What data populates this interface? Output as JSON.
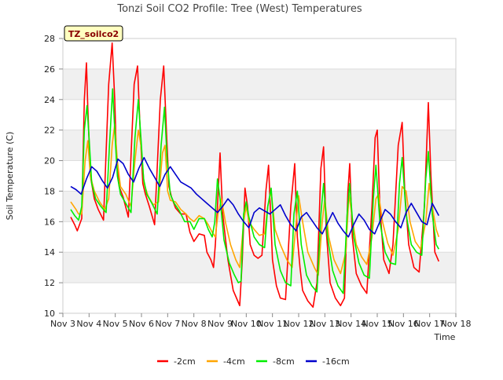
{
  "chart_data": {
    "type": "line",
    "title": "Tonzi Soil CO2 Profile: Tree (West) Temperatures",
    "xlabel": "Time",
    "ylabel": "Soil Temperature (C)",
    "badge": "TZ_soilco2",
    "xlim": [
      3,
      18
    ],
    "ylim": [
      10,
      28
    ],
    "x_ticks": [
      3,
      4,
      5,
      6,
      7,
      8,
      9,
      10,
      11,
      12,
      13,
      14,
      15,
      16,
      17,
      18
    ],
    "x_tick_labels": [
      "Nov 3",
      "Nov 4",
      "Nov 5",
      "Nov 6",
      "Nov 7",
      "Nov 8",
      "Nov 9",
      "Nov 10",
      "Nov 11",
      "Nov 12",
      "Nov 13",
      "Nov 14",
      "Nov 15",
      "Nov 16",
      "Nov 17",
      "Nov 18"
    ],
    "y_ticks": [
      10,
      12,
      14,
      16,
      18,
      20,
      22,
      24,
      26,
      28
    ],
    "grid": true,
    "legend_position": "bottom",
    "series": [
      {
        "name": "-2cm",
        "color": "#ff0000",
        "x": [
          3.3,
          3.45,
          3.55,
          3.72,
          3.82,
          3.9,
          3.95,
          4.05,
          4.2,
          4.35,
          4.55,
          4.75,
          4.88,
          4.98,
          5.05,
          5.15,
          5.3,
          5.5,
          5.72,
          5.85,
          5.95,
          6.05,
          6.15,
          6.3,
          6.5,
          6.72,
          6.85,
          6.95,
          7.05,
          7.15,
          7.3,
          7.5,
          7.7,
          7.85,
          8.0,
          8.2,
          8.4,
          8.5,
          8.65,
          8.75,
          8.82,
          8.9,
          9.0,
          9.1,
          9.3,
          9.5,
          9.65,
          9.75,
          9.85,
          9.95,
          10.05,
          10.15,
          10.3,
          10.45,
          10.6,
          10.75,
          10.85,
          11.0,
          11.15,
          11.3,
          11.5,
          11.7,
          11.85,
          11.95,
          12.05,
          12.15,
          12.35,
          12.55,
          12.7,
          12.85,
          12.95,
          13.05,
          13.2,
          13.4,
          13.6,
          13.75,
          13.88,
          13.95,
          14.05,
          14.2,
          14.4,
          14.6,
          14.8,
          14.92,
          15.0,
          15.1,
          15.25,
          15.45,
          15.6,
          15.8,
          15.95,
          16.05,
          16.2,
          16.4,
          16.6,
          16.8,
          16.95,
          17.05,
          17.2,
          17.35
        ],
        "y": [
          16.3,
          15.8,
          15.4,
          16.2,
          24,
          26.4,
          23.5,
          19,
          17.5,
          16.8,
          16.1,
          25,
          27.7,
          24,
          20,
          18.3,
          17.6,
          16.3,
          25,
          26.2,
          22,
          18.5,
          17.8,
          17,
          15.8,
          24,
          26.2,
          22,
          18.3,
          17.6,
          16.9,
          16.5,
          16.5,
          15.3,
          14.7,
          15.2,
          15.1,
          14,
          13.5,
          13,
          14.5,
          17,
          20.5,
          16.5,
          13.5,
          11.5,
          10.9,
          10.5,
          13.5,
          18.2,
          17,
          14.5,
          13.8,
          13.6,
          13.8,
          18,
          19.7,
          13.5,
          11.8,
          11,
          10.9,
          17,
          19.8,
          15,
          13,
          11.5,
          10.8,
          10.4,
          12,
          19.5,
          20.9,
          15.5,
          12,
          11,
          10.5,
          11,
          18,
          19.8,
          15,
          12.6,
          11.8,
          11.3,
          17,
          21.5,
          22,
          17,
          13.5,
          12.6,
          14.5,
          21,
          22.5,
          18,
          14.5,
          13,
          12.7,
          17,
          23.8,
          19,
          14,
          13.4
        ]
      },
      {
        "name": "-4cm",
        "color": "#ffa500",
        "x": [
          3.3,
          3.5,
          3.6,
          3.72,
          3.85,
          3.95,
          4.05,
          4.2,
          4.4,
          4.6,
          4.75,
          4.88,
          4.98,
          5.08,
          5.2,
          5.4,
          5.6,
          5.75,
          5.88,
          5.98,
          6.1,
          6.25,
          6.45,
          6.65,
          6.8,
          6.9,
          7.0,
          7.1,
          7.3,
          7.5,
          7.7,
          7.85,
          8.0,
          8.2,
          8.4,
          8.55,
          8.7,
          8.82,
          8.92,
          9.05,
          9.2,
          9.4,
          9.6,
          9.75,
          9.9,
          10.0,
          10.1,
          10.3,
          10.5,
          10.7,
          10.82,
          10.95,
          11.1,
          11.3,
          11.55,
          11.75,
          11.88,
          12.0,
          12.15,
          12.35,
          12.6,
          12.75,
          12.9,
          13.0,
          13.15,
          13.35,
          13.6,
          13.8,
          13.92,
          14.05,
          14.2,
          14.4,
          14.6,
          14.8,
          14.95,
          15.05,
          15.2,
          15.4,
          15.6,
          15.8,
          15.95,
          16.1,
          16.25,
          16.45,
          16.65,
          16.85,
          16.98,
          17.1,
          17.25,
          17.35
        ],
        "y": [
          17.3,
          16.8,
          16.5,
          16.5,
          20,
          21.3,
          19,
          18,
          17.3,
          16.8,
          17.5,
          21,
          22.4,
          20,
          18.3,
          17.8,
          17,
          20,
          22,
          21,
          18.5,
          17.7,
          17.1,
          17.3,
          20.5,
          21,
          18,
          17.4,
          17.3,
          16.8,
          16.5,
          16.2,
          16,
          16.4,
          16.2,
          15.8,
          15.3,
          15,
          16.5,
          17.5,
          16,
          14.5,
          13.5,
          13,
          16,
          17,
          16,
          15.5,
          15.1,
          15.2,
          17,
          18,
          15.5,
          14.5,
          13.5,
          13,
          15.5,
          17.7,
          16,
          14,
          13,
          12.5,
          16,
          17.5,
          15,
          13.5,
          12.6,
          14,
          17.8,
          16.2,
          14.5,
          13.7,
          13.2,
          15,
          17.5,
          17.8,
          16,
          14.6,
          13.8,
          15.5,
          18.3,
          18,
          16,
          14.7,
          14.2,
          16,
          18.5,
          17,
          15.5,
          15
        ]
      },
      {
        "name": "-8cm",
        "color": "#00ee00",
        "x": [
          3.3,
          3.45,
          3.6,
          3.72,
          3.82,
          3.92,
          4.0,
          4.1,
          4.25,
          4.45,
          4.65,
          4.78,
          4.9,
          4.98,
          5.08,
          5.2,
          5.4,
          5.6,
          5.75,
          5.88,
          5.98,
          6.08,
          6.2,
          6.4,
          6.6,
          6.75,
          6.88,
          6.98,
          7.1,
          7.25,
          7.45,
          7.65,
          7.85,
          8.0,
          8.2,
          8.4,
          8.55,
          8.7,
          8.8,
          8.9,
          9.0,
          9.15,
          9.35,
          9.55,
          9.7,
          9.8,
          9.9,
          10.0,
          10.1,
          10.3,
          10.5,
          10.7,
          10.82,
          10.95,
          11.1,
          11.3,
          11.5,
          11.7,
          11.82,
          11.95,
          12.1,
          12.3,
          12.5,
          12.7,
          12.85,
          12.95,
          13.1,
          13.3,
          13.5,
          13.7,
          13.85,
          13.95,
          14.1,
          14.3,
          14.5,
          14.7,
          14.85,
          14.95,
          15.1,
          15.3,
          15.5,
          15.7,
          15.85,
          15.95,
          16.1,
          16.3,
          16.5,
          16.7,
          16.85,
          16.95,
          17.1,
          17.25,
          17.35
        ],
        "y": [
          16.8,
          16.4,
          16.1,
          17,
          22,
          23.6,
          21.5,
          18.5,
          17.5,
          17,
          16.6,
          21,
          24.7,
          22,
          19,
          17.8,
          17.2,
          16.6,
          21.5,
          24,
          21.5,
          18.8,
          17.8,
          17.2,
          16.5,
          21,
          23.5,
          20,
          17.8,
          17.2,
          16.7,
          16,
          16,
          15.5,
          16.2,
          16.2,
          15.5,
          15,
          16,
          18.8,
          17.5,
          14.8,
          13.3,
          12.5,
          12,
          12.1,
          16.5,
          17.3,
          16.3,
          15,
          14.5,
          14.3,
          17,
          18.2,
          14.5,
          12.8,
          12,
          11.8,
          16.5,
          18,
          14.5,
          12.5,
          11.8,
          11.4,
          16.5,
          18.5,
          15,
          12.8,
          11.8,
          11.3,
          16.5,
          18.5,
          15,
          13.3,
          12.5,
          12.3,
          17.5,
          19.7,
          16,
          14,
          13.3,
          13.2,
          18.5,
          20.2,
          16.5,
          14.5,
          14,
          13.8,
          18.8,
          20.6,
          16.5,
          14.5,
          14.2
        ]
      },
      {
        "name": "-16cm",
        "color": "#0000cc",
        "x": [
          3.3,
          3.5,
          3.7,
          3.9,
          4.1,
          4.3,
          4.5,
          4.7,
          4.9,
          5.1,
          5.3,
          5.5,
          5.7,
          5.9,
          6.1,
          6.3,
          6.5,
          6.7,
          6.9,
          7.1,
          7.3,
          7.5,
          7.7,
          7.9,
          8.1,
          8.3,
          8.5,
          8.7,
          8.9,
          9.1,
          9.3,
          9.5,
          9.7,
          9.9,
          10.1,
          10.3,
          10.5,
          10.7,
          10.9,
          11.1,
          11.3,
          11.5,
          11.7,
          11.9,
          12.1,
          12.3,
          12.5,
          12.7,
          12.9,
          13.1,
          13.3,
          13.5,
          13.7,
          13.9,
          14.1,
          14.3,
          14.5,
          14.7,
          14.9,
          15.1,
          15.3,
          15.5,
          15.7,
          15.9,
          16.1,
          16.3,
          16.5,
          16.7,
          16.9,
          17.1,
          17.35
        ],
        "y": [
          18.3,
          18.1,
          17.8,
          18.8,
          19.6,
          19.3,
          18.7,
          18.2,
          18.9,
          20.1,
          19.8,
          19.1,
          18.6,
          19.5,
          20.2,
          19.5,
          18.9,
          18.3,
          19.1,
          19.6,
          19.1,
          18.6,
          18.4,
          18.2,
          17.8,
          17.5,
          17.2,
          16.9,
          16.6,
          17.0,
          17.5,
          17.1,
          16.5,
          16.0,
          15.6,
          16.6,
          16.9,
          16.7,
          16.5,
          16.8,
          17.1,
          16.4,
          15.8,
          15.4,
          16.3,
          16.6,
          16.1,
          15.6,
          15.2,
          15.9,
          16.6,
          15.9,
          15.4,
          15.0,
          15.8,
          16.5,
          16.1,
          15.5,
          15.2,
          16.0,
          16.8,
          16.5,
          16.0,
          15.6,
          16.6,
          17.2,
          16.6,
          16.0,
          15.8,
          17.2,
          16.4
        ]
      }
    ]
  }
}
